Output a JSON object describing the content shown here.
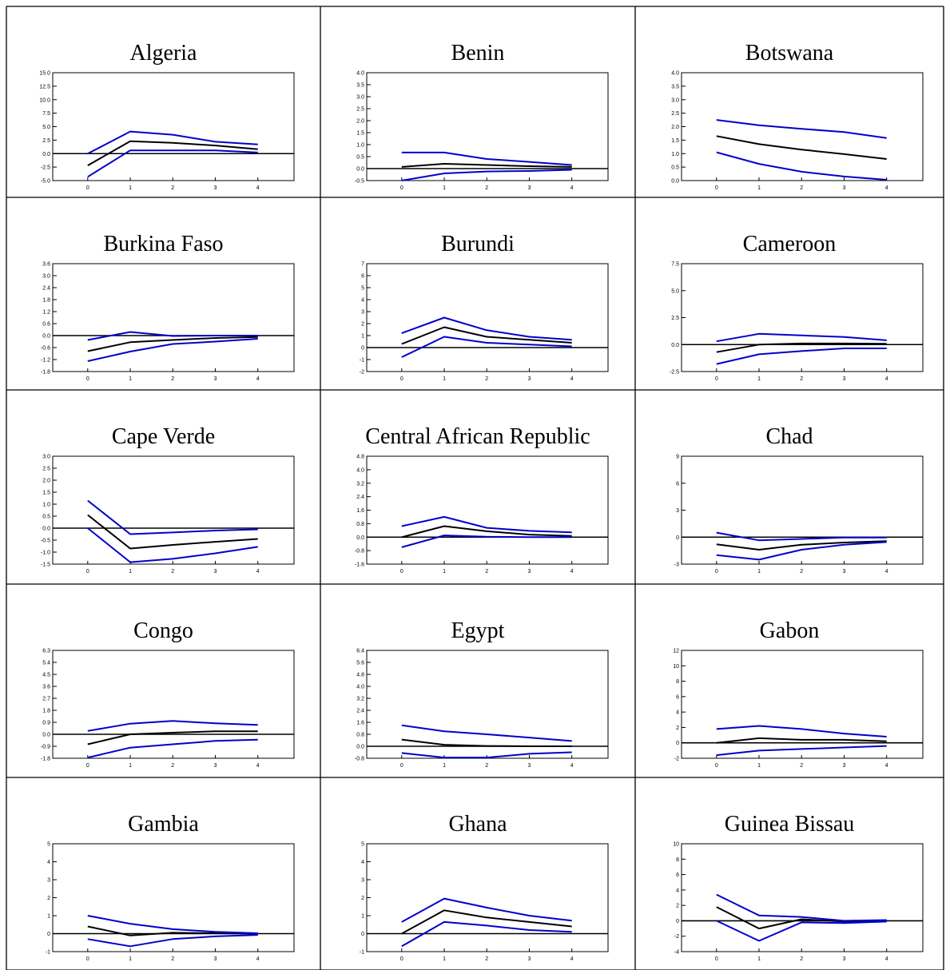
{
  "colors": {
    "point_estimate": "#000000",
    "bands": "#0000cc",
    "frame": "#000000"
  },
  "chart_data": [
    {
      "type": "line",
      "title": "Algeria",
      "x": [
        0,
        1,
        2,
        3,
        4
      ],
      "yticks": [
        "15.0",
        "12.5",
        "10.0",
        "7.5",
        "5.0",
        "2.5",
        "0.0",
        "-2.5",
        "-5.0"
      ],
      "ylim": [
        -5,
        15
      ],
      "xticks": [
        "0",
        "1",
        "2",
        "3",
        "4"
      ],
      "series": [
        {
          "values": [
            -2.2,
            2.3,
            2.0,
            1.5,
            0.8
          ]
        },
        {
          "values": [
            0.0,
            4.1,
            3.5,
            2.2,
            1.7
          ]
        },
        {
          "values": [
            -4.3,
            0.6,
            0.6,
            0.6,
            0.2
          ]
        }
      ]
    },
    {
      "type": "line",
      "title": "Benin",
      "x": [
        0,
        1,
        2,
        3,
        4
      ],
      "yticks": [
        "4.0",
        "3.5",
        "3.0",
        "2.5",
        "2.0",
        "1.5",
        "1.0",
        "0.5",
        "0.0",
        "-0.5"
      ],
      "ylim": [
        -0.5,
        4.0
      ],
      "xticks": [
        "0",
        "1",
        "2",
        "3",
        "4"
      ],
      "series": [
        {
          "values": [
            0.07,
            0.2,
            0.15,
            0.1,
            0.07
          ]
        },
        {
          "values": [
            0.67,
            0.67,
            0.4,
            0.28,
            0.15
          ]
        },
        {
          "values": [
            -0.5,
            -0.2,
            -0.12,
            -0.1,
            -0.05
          ]
        }
      ]
    },
    {
      "type": "line",
      "title": "Botswana",
      "x": [
        0,
        1,
        2,
        3,
        4
      ],
      "yticks": [
        "4.0",
        "3.5",
        "3.0",
        "2.5",
        "2.0",
        "1.5",
        "1.0",
        "0.5",
        "0.0"
      ],
      "ylim": [
        0,
        4.0
      ],
      "xticks": [
        "0",
        "1",
        "2",
        "3",
        "4"
      ],
      "series": [
        {
          "values": [
            1.65,
            1.35,
            1.15,
            0.98,
            0.8
          ]
        },
        {
          "values": [
            2.25,
            2.05,
            1.92,
            1.8,
            1.58
          ]
        },
        {
          "values": [
            1.05,
            0.62,
            0.33,
            0.15,
            0.03
          ]
        }
      ]
    },
    {
      "type": "line",
      "title": "Burkina Faso",
      "x": [
        0,
        1,
        2,
        3,
        4
      ],
      "yticks": [
        "3.6",
        "3.0",
        "2.4",
        "1.8",
        "1.2",
        "0.6",
        "0.0",
        "-0.6",
        "-1.2",
        "-1.8"
      ],
      "ylim": [
        -1.8,
        3.6
      ],
      "xticks": [
        "0",
        "1",
        "2",
        "3",
        "4"
      ],
      "series": [
        {
          "values": [
            -0.78,
            -0.33,
            -0.22,
            -0.12,
            -0.07
          ]
        },
        {
          "values": [
            -0.22,
            0.18,
            -0.02,
            0.0,
            0.0
          ]
        },
        {
          "values": [
            -1.28,
            -0.8,
            -0.42,
            -0.3,
            -0.16
          ]
        }
      ]
    },
    {
      "type": "line",
      "title": "Burundi",
      "x": [
        0,
        1,
        2,
        3,
        4
      ],
      "yticks": [
        "7",
        "6",
        "5",
        "4",
        "3",
        "2",
        "1",
        "0",
        "-1",
        "-2"
      ],
      "ylim": [
        -2,
        7
      ],
      "xticks": [
        "0",
        "1",
        "2",
        "3",
        "4"
      ],
      "series": [
        {
          "values": [
            0.3,
            1.7,
            0.9,
            0.65,
            0.4
          ]
        },
        {
          "values": [
            1.2,
            2.5,
            1.45,
            0.9,
            0.65
          ]
        },
        {
          "values": [
            -0.8,
            0.9,
            0.4,
            0.25,
            0.1
          ]
        }
      ]
    },
    {
      "type": "line",
      "title": "Cameroon",
      "x": [
        0,
        1,
        2,
        3,
        4
      ],
      "yticks": [
        "7.5",
        "5.0",
        "2.5",
        "0.0",
        "-2.5"
      ],
      "ylim": [
        -2.5,
        7.5
      ],
      "xticks": [
        "0",
        "1",
        "2",
        "3",
        "4"
      ],
      "series": [
        {
          "values": [
            -0.7,
            0.0,
            0.1,
            0.1,
            0.07
          ]
        },
        {
          "values": [
            0.3,
            1.0,
            0.85,
            0.7,
            0.4
          ]
        },
        {
          "values": [
            -1.8,
            -0.9,
            -0.6,
            -0.35,
            -0.35
          ]
        }
      ]
    },
    {
      "type": "line",
      "title": "Cape Verde",
      "x": [
        0,
        1,
        2,
        3,
        4
      ],
      "yticks": [
        "3.0",
        "2.5",
        "2.0",
        "1.5",
        "1.0",
        "0.5",
        "0.0",
        "-0.5",
        "-1.0",
        "-1.5"
      ],
      "ylim": [
        -1.5,
        3.0
      ],
      "xticks": [
        "0",
        "1",
        "2",
        "3",
        "4"
      ],
      "series": [
        {
          "values": [
            0.55,
            -0.85,
            -0.7,
            -0.57,
            -0.45
          ]
        },
        {
          "values": [
            1.15,
            -0.25,
            -0.18,
            -0.1,
            -0.05
          ]
        },
        {
          "values": [
            0.0,
            -1.42,
            -1.28,
            -1.05,
            -0.78
          ]
        }
      ]
    },
    {
      "type": "line",
      "title": "Central African Republic",
      "x": [
        0,
        1,
        2,
        3,
        4
      ],
      "yticks": [
        "4.8",
        "4.0",
        "3.2",
        "2.4",
        "1.6",
        "0.8",
        "0.0",
        "-0.8",
        "-1.6"
      ],
      "ylim": [
        -1.6,
        4.8
      ],
      "xticks": [
        "0",
        "1",
        "2",
        "3",
        "4"
      ],
      "series": [
        {
          "values": [
            0.0,
            0.65,
            0.35,
            0.15,
            0.07
          ]
        },
        {
          "values": [
            0.65,
            1.2,
            0.55,
            0.37,
            0.28
          ]
        },
        {
          "values": [
            -0.6,
            0.1,
            0.02,
            0.0,
            0.0
          ]
        }
      ]
    },
    {
      "type": "line",
      "title": "Chad",
      "x": [
        0,
        1,
        2,
        3,
        4
      ],
      "yticks": [
        "9",
        "6",
        "3",
        "0",
        "-3"
      ],
      "ylim": [
        -3,
        9
      ],
      "xticks": [
        "0",
        "1",
        "2",
        "3",
        "4"
      ],
      "series": [
        {
          "values": [
            -0.8,
            -1.4,
            -0.85,
            -0.6,
            -0.45
          ]
        },
        {
          "values": [
            0.5,
            -0.35,
            -0.2,
            -0.05,
            -0.05
          ]
        },
        {
          "values": [
            -2.0,
            -2.5,
            -1.4,
            -0.85,
            -0.55
          ]
        }
      ]
    },
    {
      "type": "line",
      "title": "Congo",
      "x": [
        0,
        1,
        2,
        3,
        4
      ],
      "yticks": [
        "6.3",
        "5.4",
        "4.5",
        "3.6",
        "2.7",
        "1.8",
        "0.9",
        "0.0",
        "-0.9",
        "-1.8"
      ],
      "ylim": [
        -1.8,
        6.3
      ],
      "xticks": [
        "0",
        "1",
        "2",
        "3",
        "4"
      ],
      "series": [
        {
          "values": [
            -0.75,
            0.0,
            0.12,
            0.22,
            0.22
          ]
        },
        {
          "values": [
            0.25,
            0.8,
            1.0,
            0.82,
            0.7
          ]
        },
        {
          "values": [
            -1.75,
            -1.0,
            -0.75,
            -0.5,
            -0.4
          ]
        }
      ]
    },
    {
      "type": "line",
      "title": "Egypt",
      "x": [
        0,
        1,
        2,
        3,
        4
      ],
      "yticks": [
        "6.4",
        "5.6",
        "4.8",
        "4.0",
        "3.2",
        "2.4",
        "1.6",
        "0.8",
        "0.0",
        "-0.8"
      ],
      "ylim": [
        -0.8,
        6.4
      ],
      "xticks": [
        "0",
        "1",
        "2",
        "3",
        "4"
      ],
      "series": [
        {
          "values": [
            0.45,
            0.1,
            0.02,
            0.0,
            0.0
          ]
        },
        {
          "values": [
            1.4,
            1.0,
            0.8,
            0.58,
            0.35
          ]
        },
        {
          "values": [
            -0.45,
            -0.75,
            -0.75,
            -0.5,
            -0.4
          ]
        }
      ]
    },
    {
      "type": "line",
      "title": "Gabon",
      "x": [
        0,
        1,
        2,
        3,
        4
      ],
      "yticks": [
        "12",
        "10",
        "8",
        "6",
        "4",
        "2",
        "0",
        "-2"
      ],
      "ylim": [
        -2,
        12
      ],
      "xticks": [
        "0",
        "1",
        "2",
        "3",
        "4"
      ],
      "series": [
        {
          "values": [
            0.0,
            0.6,
            0.4,
            0.4,
            0.2
          ]
        },
        {
          "values": [
            1.8,
            2.2,
            1.8,
            1.2,
            0.8
          ]
        },
        {
          "values": [
            -1.6,
            -1.0,
            -0.8,
            -0.6,
            -0.4
          ]
        }
      ]
    },
    {
      "type": "line",
      "title": "Gambia",
      "x": [
        0,
        1,
        2,
        3,
        4
      ],
      "yticks": [
        "5",
        "4",
        "3",
        "2",
        "1",
        "0",
        "-1"
      ],
      "ylim": [
        -1,
        5
      ],
      "xticks": [
        "0",
        "1",
        "2",
        "3",
        "4"
      ],
      "series": [
        {
          "values": [
            0.4,
            -0.1,
            0.05,
            0.02,
            0.0
          ]
        },
        {
          "values": [
            1.0,
            0.55,
            0.25,
            0.1,
            0.02
          ]
        },
        {
          "values": [
            -0.3,
            -0.7,
            -0.3,
            -0.15,
            -0.07
          ]
        }
      ]
    },
    {
      "type": "line",
      "title": "Ghana",
      "x": [
        0,
        1,
        2,
        3,
        4
      ],
      "yticks": [
        "5",
        "4",
        "3",
        "2",
        "1",
        "0",
        "-1"
      ],
      "ylim": [
        -1,
        5
      ],
      "xticks": [
        "0",
        "1",
        "2",
        "3",
        "4"
      ],
      "series": [
        {
          "values": [
            0.0,
            1.3,
            0.9,
            0.65,
            0.4
          ]
        },
        {
          "values": [
            0.65,
            1.95,
            1.45,
            1.0,
            0.72
          ]
        },
        {
          "values": [
            -0.7,
            0.65,
            0.45,
            0.2,
            0.1
          ]
        }
      ]
    },
    {
      "type": "line",
      "title": "Guinea Bissau",
      "x": [
        0,
        1,
        2,
        3,
        4
      ],
      "yticks": [
        "10",
        "8",
        "6",
        "4",
        "2",
        "0",
        "-2",
        "-4"
      ],
      "ylim": [
        -4,
        10
      ],
      "xticks": [
        "0",
        "1",
        "2",
        "3",
        "4"
      ],
      "series": [
        {
          "values": [
            1.8,
            -1.0,
            0.2,
            -0.1,
            0.0
          ]
        },
        {
          "values": [
            3.4,
            0.7,
            0.5,
            0.0,
            0.1
          ]
        },
        {
          "values": [
            0.0,
            -2.6,
            -0.2,
            -0.3,
            -0.1
          ]
        }
      ]
    }
  ]
}
